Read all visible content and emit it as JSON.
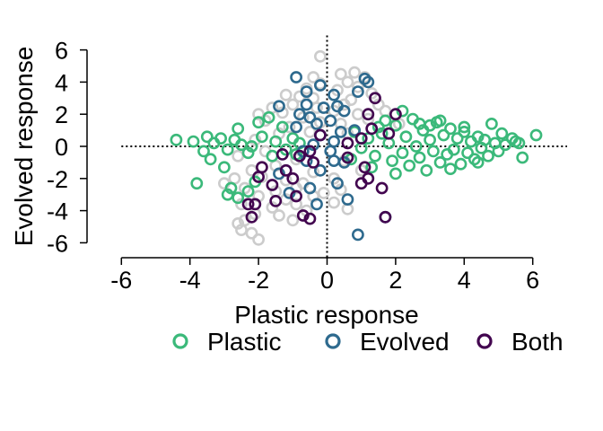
{
  "chart_data": {
    "type": "scatter",
    "title": "",
    "xlabel": "Plastic response",
    "ylabel": "Evolved response",
    "xlim": [
      -6,
      7
    ],
    "ylim": [
      -6.5,
      6.5
    ],
    "xticks": [
      -6,
      -4,
      -2,
      0,
      2,
      4,
      6
    ],
    "yticks": [
      -6,
      -4,
      -2,
      0,
      2,
      4,
      6
    ],
    "grid": false,
    "reference_lines": [
      {
        "orientation": "vertical",
        "value": 0,
        "style": "dotted"
      },
      {
        "orientation": "horizontal",
        "value": 0,
        "style": "dotted"
      }
    ],
    "marker": "open-circle",
    "legend_position": "bottom",
    "series": [
      {
        "name": "",
        "color": "#cccccc",
        "points": [
          [
            -0.2,
            5.6
          ],
          [
            0.8,
            4.6
          ],
          [
            0.4,
            4.5
          ],
          [
            -0.4,
            4.3
          ],
          [
            1.1,
            4.3
          ],
          [
            0.6,
            4.0
          ],
          [
            -0.2,
            3.9
          ],
          [
            0.9,
            3.7
          ],
          [
            -0.6,
            3.6
          ],
          [
            0.3,
            3.5
          ],
          [
            -1.2,
            3.2
          ],
          [
            -0.8,
            3.1
          ],
          [
            1.3,
            3.3
          ],
          [
            -0.4,
            3.0
          ],
          [
            0.7,
            2.9
          ],
          [
            -1.0,
            2.6
          ],
          [
            0.5,
            2.6
          ],
          [
            -1.6,
            2.4
          ],
          [
            1.5,
            2.6
          ],
          [
            -0.3,
            2.4
          ],
          [
            0.2,
            2.2
          ],
          [
            -1.3,
            2.1
          ],
          [
            0.9,
            2.0
          ],
          [
            -2.0,
            2.0
          ],
          [
            -0.7,
            1.8
          ],
          [
            1.7,
            2.2
          ],
          [
            -1.8,
            1.6
          ],
          [
            1.2,
            1.7
          ],
          [
            -0.2,
            1.5
          ],
          [
            0.4,
            1.4
          ],
          [
            -1.1,
            1.2
          ],
          [
            2.1,
            1.4
          ],
          [
            -2.1,
            0.4
          ],
          [
            -1.4,
            0.8
          ],
          [
            -0.5,
            0.9
          ],
          [
            0.6,
            0.8
          ],
          [
            -1.8,
            -0.3
          ],
          [
            -2.6,
            -0.6
          ],
          [
            -0.9,
            -0.8
          ],
          [
            0.5,
            -0.9
          ],
          [
            -1.5,
            -1.2
          ],
          [
            -2.2,
            -1.5
          ],
          [
            -0.4,
            -1.6
          ],
          [
            1.0,
            -1.5
          ],
          [
            -1.9,
            -1.9
          ],
          [
            -2.7,
            -2.0
          ],
          [
            -1.2,
            -2.1
          ],
          [
            0.2,
            -2.0
          ],
          [
            -0.7,
            -2.3
          ],
          [
            -2.4,
            -2.6
          ],
          [
            -1.5,
            -2.8
          ],
          [
            -0.9,
            -2.6
          ],
          [
            0.4,
            -2.7
          ],
          [
            -2.0,
            -3.1
          ],
          [
            -1.2,
            -3.3
          ],
          [
            -0.4,
            -3.1
          ],
          [
            -2.5,
            -3.6
          ],
          [
            -1.6,
            -3.8
          ],
          [
            -0.9,
            -3.6
          ],
          [
            0.2,
            -3.5
          ],
          [
            -2.1,
            -4.2
          ],
          [
            -1.4,
            -4.3
          ],
          [
            -0.6,
            -4.0
          ],
          [
            -2.4,
            -4.6
          ],
          [
            -2.6,
            -4.8
          ],
          [
            -2.2,
            -5.4
          ],
          [
            -2.0,
            -5.8
          ],
          [
            -2.5,
            -5.2
          ],
          [
            -1.0,
            -4.6
          ],
          [
            0.6,
            -3.9
          ],
          [
            -0.1,
            -2.9
          ],
          [
            -3.0,
            -2.3
          ]
        ]
      },
      {
        "name": "Plastic",
        "color": "#3bb97a",
        "points": [
          [
            -4.4,
            0.4
          ],
          [
            -3.9,
            0.3
          ],
          [
            -3.5,
            0.6
          ],
          [
            -3.3,
            0.2
          ],
          [
            -3.6,
            -0.3
          ],
          [
            -3.1,
            0.5
          ],
          [
            -2.9,
            -0.2
          ],
          [
            -2.7,
            0.4
          ],
          [
            -2.5,
            0.1
          ],
          [
            -2.3,
            -0.4
          ],
          [
            -3.0,
            -1.3
          ],
          [
            -3.4,
            -0.8
          ],
          [
            -3.8,
            -2.3
          ],
          [
            -2.8,
            -2.6
          ],
          [
            -2.9,
            -3.0
          ],
          [
            -2.6,
            -3.2
          ],
          [
            -2.3,
            -2.8
          ],
          [
            -2.1,
            -2.2
          ],
          [
            -2.0,
            1.5
          ],
          [
            -1.7,
            1.8
          ],
          [
            -1.9,
            0.6
          ],
          [
            -1.5,
            0.3
          ],
          [
            -1.2,
            -0.2
          ],
          [
            -1.6,
            -0.6
          ],
          [
            -1.0,
            0.5
          ],
          [
            -0.8,
            0.2
          ],
          [
            -2.6,
            1.1
          ],
          [
            -2.2,
            0.0
          ],
          [
            -1.3,
            1.2
          ],
          [
            -0.9,
            -0.5
          ],
          [
            1.0,
            -0.1
          ],
          [
            1.2,
            0.5
          ],
          [
            1.4,
            -0.6
          ],
          [
            1.6,
            0.8
          ],
          [
            1.8,
            0.2
          ],
          [
            1.9,
            -0.9
          ],
          [
            2.0,
            1.3
          ],
          [
            2.2,
            -0.4
          ],
          [
            2.3,
            0.6
          ],
          [
            2.4,
            -1.2
          ],
          [
            2.5,
            1.7
          ],
          [
            2.6,
            0.0
          ],
          [
            2.7,
            -0.7
          ],
          [
            2.8,
            1.0
          ],
          [
            2.9,
            -1.5
          ],
          [
            3.0,
            0.4
          ],
          [
            3.1,
            -0.3
          ],
          [
            3.2,
            1.5
          ],
          [
            3.3,
            -1.0
          ],
          [
            3.4,
            0.7
          ],
          [
            3.5,
            -0.5
          ],
          [
            3.6,
            1.1
          ],
          [
            3.7,
            -0.2
          ],
          [
            3.8,
            0.5
          ],
          [
            3.9,
            -1.1
          ],
          [
            4.0,
            0.9
          ],
          [
            4.1,
            -0.4
          ],
          [
            4.2,
            0.3
          ],
          [
            4.3,
            -0.8
          ],
          [
            4.4,
            0.6
          ],
          [
            4.5,
            -0.1
          ],
          [
            4.6,
            0.4
          ],
          [
            4.7,
            -0.6
          ],
          [
            4.8,
            1.4
          ],
          [
            4.9,
            0.2
          ],
          [
            5.0,
            -0.3
          ],
          [
            5.1,
            0.8
          ],
          [
            5.2,
            0.1
          ],
          [
            5.4,
            0.5
          ],
          [
            5.5,
            0.3
          ],
          [
            5.6,
            0.2
          ],
          [
            5.7,
            -0.7
          ],
          [
            6.1,
            0.7
          ],
          [
            3.3,
            1.6
          ],
          [
            2.2,
            2.2
          ],
          [
            1.5,
            1.2
          ],
          [
            2.0,
            -1.7
          ],
          [
            3.6,
            -1.4
          ],
          [
            4.4,
            -1.0
          ],
          [
            1.3,
            -1.3
          ],
          [
            2.7,
            1.4
          ],
          [
            4.0,
            1.2
          ],
          [
            0.8,
            0.9
          ],
          [
            0.7,
            -0.8
          ],
          [
            1.7,
            1.6
          ],
          [
            3.0,
            1.3
          ]
        ]
      },
      {
        "name": "Evolved",
        "color": "#2e6a8e",
        "points": [
          [
            -0.9,
            4.3
          ],
          [
            1.1,
            4.2
          ],
          [
            1.2,
            4.0
          ],
          [
            -0.2,
            3.8
          ],
          [
            0.9,
            3.4
          ],
          [
            -0.6,
            3.4
          ],
          [
            0.2,
            3.2
          ],
          [
            -0.6,
            2.6
          ],
          [
            0.3,
            2.5
          ],
          [
            -0.1,
            2.4
          ],
          [
            -0.8,
            2.0
          ],
          [
            0.5,
            2.2
          ],
          [
            -1.4,
            2.5
          ],
          [
            -0.5,
            1.8
          ],
          [
            0.1,
            1.6
          ],
          [
            -0.3,
            1.4
          ],
          [
            -0.9,
            1.2
          ],
          [
            0.4,
            0.9
          ],
          [
            -0.2,
            0.7
          ],
          [
            0.2,
            0.3
          ],
          [
            -0.4,
            0.1
          ],
          [
            0.1,
            -0.3
          ],
          [
            -0.6,
            -0.9
          ],
          [
            0.5,
            -1.0
          ],
          [
            -0.2,
            -1.5
          ],
          [
            0.3,
            -2.3
          ],
          [
            -0.5,
            -2.6
          ],
          [
            -1.1,
            -2.9
          ],
          [
            0.6,
            -3.3
          ],
          [
            -0.3,
            -3.6
          ],
          [
            0.9,
            -5.5
          ],
          [
            1.7,
            -4.4
          ],
          [
            -1.4,
            -1.7
          ],
          [
            0.8,
            1.0
          ],
          [
            -0.7,
            -0.3
          ],
          [
            0.2,
            -0.9
          ]
        ]
      },
      {
        "name": "Both",
        "color": "#42054f",
        "points": [
          [
            1.4,
            3.0
          ],
          [
            1.2,
            2.0
          ],
          [
            2.0,
            2.0
          ],
          [
            1.8,
            0.8
          ],
          [
            1.3,
            1.1
          ],
          [
            1.0,
            0.5
          ],
          [
            0.6,
            0.2
          ],
          [
            -0.2,
            0.7
          ],
          [
            -0.5,
            -0.3
          ],
          [
            -0.8,
            -0.6
          ],
          [
            -1.3,
            -0.5
          ],
          [
            -1.2,
            -1.5
          ],
          [
            -1.9,
            -1.3
          ],
          [
            -2.0,
            -1.9
          ],
          [
            -1.6,
            -2.4
          ],
          [
            -1.0,
            -2.0
          ],
          [
            -0.9,
            -3.1
          ],
          [
            -1.5,
            -3.4
          ],
          [
            -2.3,
            -3.6
          ],
          [
            -2.1,
            -3.6
          ],
          [
            -2.2,
            -4.4
          ],
          [
            -0.7,
            -4.3
          ],
          [
            -0.5,
            -4.5
          ],
          [
            1.1,
            -1.3
          ],
          [
            1.0,
            -2.3
          ],
          [
            1.6,
            -2.6
          ],
          [
            1.7,
            -4.4
          ],
          [
            1.2,
            -2.0
          ],
          [
            0.6,
            -0.7
          ],
          [
            -0.4,
            -1.0
          ]
        ]
      }
    ]
  }
}
